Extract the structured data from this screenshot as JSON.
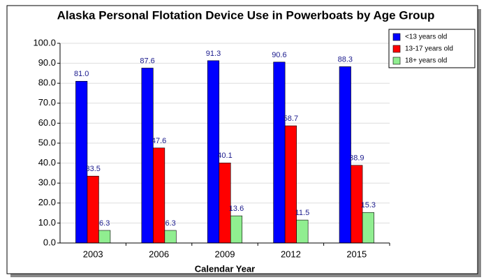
{
  "chart_data": {
    "type": "bar",
    "title": "Alaska Personal Flotation Device Use in Powerboats by Age Group",
    "x_label": "Calendar Year",
    "categories": [
      "2003",
      "2006",
      "2009",
      "2012",
      "2015"
    ],
    "series": [
      {
        "name": "<13 years old",
        "color": "#0000ff",
        "values": [
          81,
          87.6,
          91.3,
          90.6,
          88.3
        ],
        "value_labels": [
          "81.0",
          "87.6",
          "91.3",
          "90.6",
          "88.3"
        ]
      },
      {
        "name": "13-17 years old",
        "color": "#ff0000",
        "values": [
          33.5,
          47.6,
          40.1,
          58.7,
          38.9
        ],
        "value_labels": [
          "33.5",
          "47.6",
          "40.1",
          "58.7",
          "38.9"
        ]
      },
      {
        "name": "18+ years old",
        "color": "#90ee90",
        "values": [
          6.3,
          6.3,
          13.6,
          11.5,
          15.3
        ],
        "value_labels": [
          "6.3",
          "6.3",
          "13.6",
          "11.5",
          "15.3"
        ]
      }
    ],
    "ylim": [
      0,
      100
    ],
    "yticks": [
      {
        "value": 0,
        "label": "0.0"
      },
      {
        "value": 10,
        "label": "10.0"
      },
      {
        "value": 20,
        "label": "20.0"
      },
      {
        "value": 30,
        "label": "30.0"
      },
      {
        "value": 40,
        "label": "40.0"
      },
      {
        "value": 50,
        "label": "50.0"
      },
      {
        "value": 60,
        "label": "60.0"
      },
      {
        "value": 70,
        "label": "70.0"
      },
      {
        "value": 80,
        "label": "80.0"
      },
      {
        "value": 90,
        "label": "90.0"
      },
      {
        "value": 100,
        "label": "100.0"
      }
    ],
    "grid": true,
    "legend": "upper right"
  }
}
